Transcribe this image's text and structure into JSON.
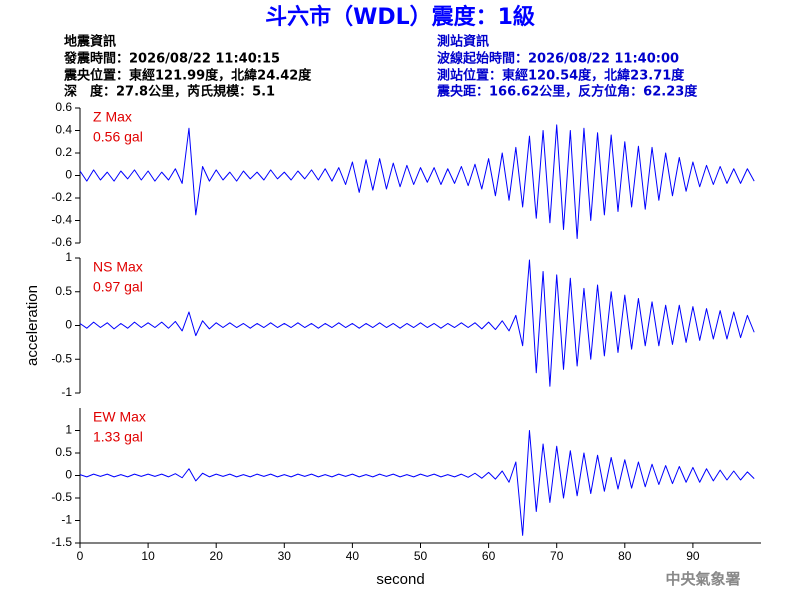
{
  "header": {
    "title": "斗六市（WDL）震度：1級",
    "quake": [
      "地震資訊",
      "發震時間：2026/08/22 11:40:15",
      "震央位置：東經121.99度，北緯24.42度",
      "深　度：27.8公里，芮氏規模：5.1"
    ],
    "station": [
      "測站資訊",
      "波線起始時間：2026/08/22 11:40:00",
      "測站位置：東經120.54度，北緯23.71度",
      "震央距：166.62公里，反方位角：62.23度"
    ]
  },
  "chart_data": [
    {
      "type": "line",
      "annotation": [
        "Z Max",
        "0.56 gal"
      ],
      "color": "#0000ff",
      "xlim": [
        0,
        100
      ],
      "ylim": [
        -0.6,
        0.6
      ],
      "yticks": [
        -0.6,
        -0.4,
        -0.2,
        0,
        0.2,
        0.4,
        0.6
      ],
      "x": [
        0,
        1,
        2,
        3,
        4,
        5,
        6,
        7,
        8,
        9,
        10,
        11,
        12,
        13,
        14,
        15,
        16,
        17,
        18,
        19,
        20,
        21,
        22,
        23,
        24,
        25,
        26,
        27,
        28,
        29,
        30,
        31,
        32,
        33,
        34,
        35,
        36,
        37,
        38,
        39,
        40,
        41,
        42,
        43,
        44,
        45,
        46,
        47,
        48,
        49,
        50,
        51,
        52,
        53,
        54,
        55,
        56,
        57,
        58,
        59,
        60,
        61,
        62,
        63,
        64,
        65,
        66,
        67,
        68,
        69,
        70,
        71,
        72,
        73,
        74,
        75,
        76,
        77,
        78,
        79,
        80,
        81,
        82,
        83,
        84,
        85,
        86,
        87,
        88,
        89,
        90,
        91,
        92,
        93,
        94,
        95,
        96,
        97,
        98,
        99
      ],
      "values": [
        0.04,
        -0.05,
        0.05,
        -0.04,
        0.03,
        -0.05,
        0.04,
        -0.03,
        0.05,
        -0.04,
        0.04,
        -0.05,
        0.03,
        -0.04,
        0.06,
        -0.07,
        0.42,
        -0.35,
        0.08,
        -0.05,
        0.05,
        -0.04,
        0.03,
        -0.05,
        0.04,
        -0.03,
        0.03,
        -0.04,
        0.05,
        -0.03,
        0.03,
        -0.04,
        0.04,
        -0.03,
        0.05,
        -0.04,
        0.06,
        -0.05,
        0.07,
        -0.08,
        0.12,
        -0.15,
        0.14,
        -0.13,
        0.15,
        -0.12,
        0.11,
        -0.1,
        0.09,
        -0.08,
        0.07,
        -0.06,
        0.07,
        -0.08,
        0.06,
        -0.07,
        0.08,
        -0.09,
        0.1,
        -0.12,
        0.15,
        -0.18,
        0.2,
        -0.22,
        0.25,
        -0.28,
        0.35,
        -0.38,
        0.4,
        -0.42,
        0.45,
        -0.48,
        0.4,
        -0.56,
        0.42,
        -0.4,
        0.38,
        -0.35,
        0.36,
        -0.32,
        0.3,
        -0.28,
        0.26,
        -0.3,
        0.25,
        -0.22,
        0.2,
        -0.18,
        0.16,
        -0.14,
        0.12,
        -0.1,
        0.09,
        -0.08,
        0.08,
        -0.07,
        0.06,
        -0.07,
        0.06,
        -0.05
      ]
    },
    {
      "type": "line",
      "annotation": [
        "NS Max",
        "0.97 gal"
      ],
      "color": "#0000ff",
      "ylabel": "acceleration",
      "xlim": [
        0,
        100
      ],
      "ylim": [
        -1,
        1
      ],
      "yticks": [
        -1,
        -0.5,
        0,
        0.5,
        1
      ],
      "x": [
        0,
        1,
        2,
        3,
        4,
        5,
        6,
        7,
        8,
        9,
        10,
        11,
        12,
        13,
        14,
        15,
        16,
        17,
        18,
        19,
        20,
        21,
        22,
        23,
        24,
        25,
        26,
        27,
        28,
        29,
        30,
        31,
        32,
        33,
        34,
        35,
        36,
        37,
        38,
        39,
        40,
        41,
        42,
        43,
        44,
        45,
        46,
        47,
        48,
        49,
        50,
        51,
        52,
        53,
        54,
        55,
        56,
        57,
        58,
        59,
        60,
        61,
        62,
        63,
        64,
        65,
        66,
        67,
        68,
        69,
        70,
        71,
        72,
        73,
        74,
        75,
        76,
        77,
        78,
        79,
        80,
        81,
        82,
        83,
        84,
        85,
        86,
        87,
        88,
        89,
        90,
        91,
        92,
        93,
        94,
        95,
        96,
        97,
        98,
        99
      ],
      "values": [
        0.03,
        -0.04,
        0.05,
        -0.03,
        0.04,
        -0.05,
        0.03,
        -0.04,
        0.05,
        -0.03,
        0.04,
        -0.03,
        0.05,
        -0.04,
        0.06,
        -0.08,
        0.2,
        -0.15,
        0.07,
        -0.05,
        0.04,
        -0.03,
        0.04,
        -0.03,
        0.03,
        -0.04,
        0.03,
        -0.03,
        0.04,
        -0.03,
        0.03,
        -0.03,
        0.04,
        -0.03,
        0.03,
        -0.04,
        0.03,
        -0.03,
        0.04,
        -0.03,
        0.03,
        -0.04,
        0.03,
        -0.03,
        0.04,
        -0.03,
        0.03,
        -0.04,
        0.03,
        -0.03,
        0.04,
        -0.03,
        0.03,
        -0.04,
        0.03,
        -0.03,
        0.04,
        -0.03,
        0.04,
        -0.05,
        0.05,
        -0.06,
        0.07,
        -0.08,
        0.15,
        -0.3,
        0.97,
        -0.7,
        0.8,
        -0.9,
        0.75,
        -0.65,
        0.7,
        -0.6,
        0.55,
        -0.5,
        0.6,
        -0.45,
        0.5,
        -0.4,
        0.45,
        -0.35,
        0.4,
        -0.3,
        0.35,
        -0.3,
        0.3,
        -0.28,
        0.3,
        -0.25,
        0.28,
        -0.22,
        0.25,
        -0.2,
        0.22,
        -0.2,
        0.2,
        -0.18,
        0.15,
        -0.1
      ]
    },
    {
      "type": "line",
      "annotation": [
        "EW Max",
        "1.33 gal"
      ],
      "color": "#0000ff",
      "xlabel": "second",
      "xlim": [
        0,
        100
      ],
      "xticks": [
        0,
        10,
        20,
        30,
        40,
        50,
        60,
        70,
        80,
        90
      ],
      "ylim": [
        -1.5,
        1.5
      ],
      "yticks": [
        -1.5,
        -1,
        -0.5,
        0,
        0.5,
        1
      ],
      "x": [
        0,
        1,
        2,
        3,
        4,
        5,
        6,
        7,
        8,
        9,
        10,
        11,
        12,
        13,
        14,
        15,
        16,
        17,
        18,
        19,
        20,
        21,
        22,
        23,
        24,
        25,
        26,
        27,
        28,
        29,
        30,
        31,
        32,
        33,
        34,
        35,
        36,
        37,
        38,
        39,
        40,
        41,
        42,
        43,
        44,
        45,
        46,
        47,
        48,
        49,
        50,
        51,
        52,
        53,
        54,
        55,
        56,
        57,
        58,
        59,
        60,
        61,
        62,
        63,
        64,
        65,
        66,
        67,
        68,
        69,
        70,
        71,
        72,
        73,
        74,
        75,
        76,
        77,
        78,
        79,
        80,
        81,
        82,
        83,
        84,
        85,
        86,
        87,
        88,
        89,
        90,
        91,
        92,
        93,
        94,
        95,
        96,
        97,
        98,
        99
      ],
      "values": [
        0.02,
        -0.03,
        0.03,
        -0.02,
        0.03,
        -0.03,
        0.02,
        -0.03,
        0.03,
        -0.02,
        0.03,
        -0.02,
        0.03,
        -0.03,
        0.04,
        -0.05,
        0.15,
        -0.12,
        0.05,
        -0.03,
        0.03,
        -0.02,
        0.03,
        -0.03,
        0.02,
        -0.03,
        0.03,
        -0.02,
        0.03,
        -0.03,
        0.02,
        -0.03,
        0.03,
        -0.02,
        0.03,
        -0.03,
        0.02,
        -0.03,
        0.03,
        -0.02,
        0.03,
        -0.03,
        0.02,
        -0.03,
        0.03,
        -0.02,
        0.03,
        -0.03,
        0.02,
        -0.03,
        0.03,
        -0.02,
        0.03,
        -0.03,
        0.02,
        -0.03,
        0.03,
        -0.04,
        0.05,
        -0.06,
        0.07,
        -0.08,
        0.1,
        -0.15,
        0.3,
        -1.33,
        1,
        -0.8,
        0.7,
        -0.6,
        0.65,
        -0.5,
        0.55,
        -0.45,
        0.5,
        -0.4,
        0.45,
        -0.35,
        0.4,
        -0.3,
        0.35,
        -0.28,
        0.3,
        -0.25,
        0.25,
        -0.2,
        0.22,
        -0.18,
        0.2,
        -0.15,
        0.18,
        -0.15,
        0.15,
        -0.12,
        0.12,
        -0.1,
        0.1,
        -0.1,
        0.08,
        -0.07
      ]
    }
  ],
  "footer": "中央氣象署"
}
